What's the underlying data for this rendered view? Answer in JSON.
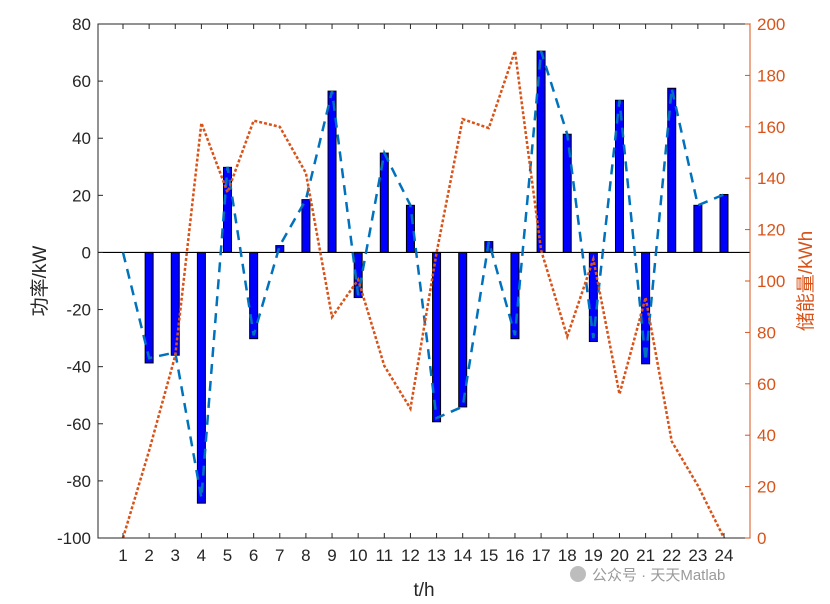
{
  "chart_data": {
    "type": "bar",
    "xlabel": "t/h",
    "ylabel_left": "功率/kW",
    "ylabel_right": "储能量/kWh",
    "x": [
      1,
      2,
      3,
      4,
      5,
      6,
      7,
      8,
      9,
      10,
      11,
      12,
      13,
      14,
      15,
      16,
      17,
      18,
      19,
      20,
      21,
      22,
      23,
      24
    ],
    "ylim_left": [
      -100,
      80
    ],
    "ylim_right": [
      0,
      200
    ],
    "yticks_left": [
      -100,
      -80,
      -60,
      -40,
      -20,
      0,
      20,
      40,
      60,
      80
    ],
    "yticks_right": [
      0,
      20,
      40,
      60,
      80,
      100,
      120,
      140,
      160,
      180,
      200
    ],
    "series": [
      {
        "name": "bars",
        "type": "bar",
        "axis": "left",
        "color": "#0000ff",
        "values": [
          0,
          -38.7,
          -36,
          -87.8,
          29.8,
          -30.2,
          2.4,
          18.5,
          56.5,
          -15.8,
          34.8,
          16.5,
          -59.3,
          -54.1,
          3.8,
          -30.2,
          70.5,
          41.4,
          -31.2,
          53.3,
          -39,
          57.5,
          16.5,
          20.3
        ]
      },
      {
        "name": "dashed",
        "type": "line",
        "axis": "left",
        "color": "#0072bd",
        "values": [
          0,
          -37,
          -35,
          -86,
          30,
          -29,
          2.4,
          18.5,
          56.5,
          -15,
          34.8,
          16.5,
          -58,
          -54,
          3.8,
          -29,
          70.5,
          41.4,
          -30,
          53.3,
          -38,
          57.5,
          16.5,
          20.3
        ]
      },
      {
        "name": "storage",
        "type": "line",
        "axis": "right",
        "color": "#d95319",
        "values": [
          0,
          34,
          71,
          161.5,
          134.5,
          162.4,
          160,
          142,
          86,
          100.5,
          67,
          50.4,
          111,
          163,
          159.5,
          189.5,
          112,
          78.4,
          108.5,
          56,
          93.6,
          37.6,
          20.4,
          0
        ]
      }
    ]
  },
  "watermark": "公众号 · 天天Matlab"
}
